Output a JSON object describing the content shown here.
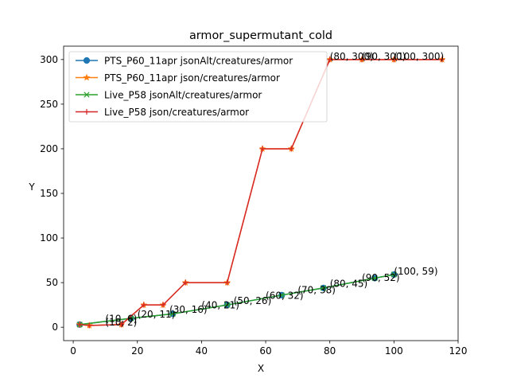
{
  "chart_data": {
    "type": "line",
    "title": "armor_supermutant_cold",
    "xlabel": "X",
    "ylabel": "Y",
    "xlim": [
      -3,
      120
    ],
    "ylim": [
      -15,
      315
    ],
    "xticks": [
      0,
      20,
      40,
      60,
      80,
      100,
      120
    ],
    "yticks": [
      0,
      50,
      100,
      150,
      200,
      250,
      300
    ],
    "grid": false,
    "legend_position": "top-left",
    "series": [
      {
        "name": "PTS_P60_11apr jsonAlt/creatures/armor",
        "color": "#1f77b4",
        "marker": "circle",
        "points": [
          [
            2,
            3
          ],
          [
            18,
            10
          ],
          [
            31,
            15
          ],
          [
            48,
            25
          ],
          [
            65,
            36
          ],
          [
            78,
            44
          ],
          [
            94,
            55
          ],
          [
            100,
            59
          ]
        ]
      },
      {
        "name": "PTS_P60_11apr json/creatures/armor",
        "color": "#ff7f0e",
        "marker": "star",
        "points": [
          [
            2,
            3
          ],
          [
            5,
            2
          ],
          [
            15,
            3
          ],
          [
            22,
            25
          ],
          [
            28,
            25
          ],
          [
            35,
            50
          ],
          [
            48,
            50
          ],
          [
            59,
            200
          ],
          [
            68,
            200
          ],
          [
            80,
            300
          ],
          [
            90,
            300
          ],
          [
            100,
            300
          ],
          [
            115,
            300
          ]
        ]
      },
      {
        "name": "Live_P58 jsonAlt/creatures/armor",
        "color": "#2ca02c",
        "marker": "x",
        "points": [
          [
            2,
            3
          ],
          [
            18,
            10
          ],
          [
            31,
            15
          ],
          [
            48,
            25
          ],
          [
            65,
            36
          ],
          [
            78,
            44
          ],
          [
            94,
            55
          ],
          [
            100,
            59
          ]
        ]
      },
      {
        "name": "Live_P58 json/creatures/armor",
        "color": "#d62728",
        "marker": "plus",
        "points": [
          [
            2,
            3
          ],
          [
            5,
            2
          ],
          [
            15,
            3
          ],
          [
            22,
            25
          ],
          [
            28,
            25
          ],
          [
            35,
            50
          ],
          [
            48,
            50
          ],
          [
            59,
            200
          ],
          [
            68,
            200
          ],
          [
            80,
            300
          ],
          [
            90,
            300
          ],
          [
            100,
            300
          ],
          [
            115,
            300
          ]
        ]
      }
    ],
    "annotations": [
      {
        "text": "(10, 2)",
        "x": 10,
        "y": 2
      },
      {
        "text": "(10, 6)",
        "x": 10,
        "y": 6
      },
      {
        "text": "(20, 11)",
        "x": 20,
        "y": 11
      },
      {
        "text": "(30, 16)",
        "x": 30,
        "y": 16
      },
      {
        "text": "(40, 21)",
        "x": 40,
        "y": 21
      },
      {
        "text": "(50, 26)",
        "x": 50,
        "y": 26
      },
      {
        "text": "(60, 32)",
        "x": 60,
        "y": 32
      },
      {
        "text": "(70, 38)",
        "x": 70,
        "y": 38
      },
      {
        "text": "(80, 45)",
        "x": 80,
        "y": 45
      },
      {
        "text": "(90, 52)",
        "x": 90,
        "y": 52
      },
      {
        "text": "(100, 59)",
        "x": 100,
        "y": 59
      },
      {
        "text": "(80, 300)",
        "x": 80,
        "y": 300
      },
      {
        "text": "(90, 300)",
        "x": 90,
        "y": 300
      },
      {
        "text": "(100, 300)",
        "x": 100,
        "y": 300
      }
    ]
  }
}
